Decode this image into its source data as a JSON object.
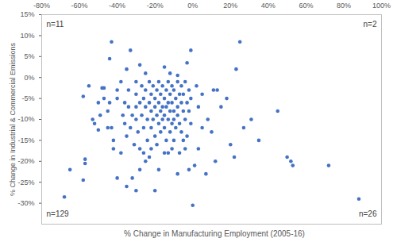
{
  "chart_data": {
    "type": "scatter",
    "x_label": "% Change in Manufacturing Employment (2005-16)",
    "y_label": "% Change in Industrial & Commercial Emissions",
    "color": "#4472c4",
    "marker": "circle",
    "grid": false,
    "annotations": [
      "n=11",
      "n=2",
      "n=129",
      "n=26"
    ],
    "xlim": [
      -80,
      100
    ],
    "xticks": [
      {
        "value": -80,
        "label": "-80%"
      },
      {
        "value": -60,
        "label": "-60%"
      },
      {
        "value": -40,
        "label": "-40%"
      },
      {
        "value": -20,
        "label": "-20%"
      },
      {
        "value": 0,
        "label": "0%"
      },
      {
        "value": 20,
        "label": "20%"
      },
      {
        "value": 40,
        "label": "40%"
      },
      {
        "value": 60,
        "label": "60%"
      },
      {
        "value": 80,
        "label": "80%"
      },
      {
        "value": 100,
        "label": "100%"
      }
    ],
    "ylim": [
      -35,
      15
    ],
    "yticks": [
      {
        "value": -30,
        "label": "-30%"
      },
      {
        "value": -25,
        "label": "-25%"
      },
      {
        "value": -20,
        "label": "-20%"
      },
      {
        "value": -15,
        "label": "-15%"
      },
      {
        "value": -10,
        "label": "-10%"
      },
      {
        "value": -5,
        "label": "-5%"
      },
      {
        "value": 0,
        "label": "0%"
      },
      {
        "value": 5,
        "label": "5%"
      },
      {
        "value": 10,
        "label": "10%"
      },
      {
        "value": 15,
        "label": "15%"
      }
    ],
    "x": [
      23,
      25,
      -43,
      -44,
      -33,
      -35,
      -28,
      -25,
      -15,
      -12,
      -3,
      -1,
      -8,
      2,
      5,
      3,
      8,
      11,
      13,
      15,
      10,
      5,
      3,
      12,
      20,
      22,
      27,
      31,
      35,
      45,
      50,
      52,
      53,
      72,
      88,
      0,
      1,
      18,
      7,
      -68,
      -65,
      -58,
      -57,
      -57,
      -58,
      -55,
      -52,
      -50,
      -48,
      -47,
      -45,
      -43,
      -42,
      -42,
      -40,
      -38,
      -35,
      -32,
      -30,
      -28,
      -25,
      -22,
      -20,
      -15,
      -13,
      -10,
      -5,
      -3,
      -2,
      -8,
      -18,
      -45,
      -44,
      -40,
      -40,
      -38,
      -37,
      -36,
      -35,
      -33,
      -32,
      -30,
      -30,
      -30,
      -30,
      -29,
      -28,
      -27,
      -27,
      -26,
      -26,
      -25,
      -25,
      -24,
      -24,
      -23,
      -23,
      -22,
      -22,
      -22,
      -21,
      -21,
      -20,
      -20,
      -20,
      -19,
      -19,
      -18,
      -18,
      -18,
      -17,
      -17,
      -17,
      -16,
      -16,
      -16,
      -15,
      -15,
      -15,
      -14,
      -14,
      -14,
      -13,
      -13,
      -13,
      -12,
      -12,
      -12,
      -11,
      -11,
      -11,
      -10,
      -10,
      -10,
      -9,
      -9,
      -8,
      -8,
      -8,
      -7,
      -7,
      -6,
      -6,
      -6,
      -5,
      -5,
      -4,
      -4,
      -3,
      -2,
      -2,
      -1,
      -1,
      -34,
      -34,
      -31,
      -28,
      -26,
      -23,
      -19,
      -11,
      -7,
      -4,
      -36,
      -47,
      -50,
      -53,
      -49
    ],
    "y": [
      2,
      8.5,
      8.5,
      4.5,
      6.5,
      2,
      3,
      1,
      2.5,
      1,
      3.5,
      6.5,
      0.5,
      -2,
      -4,
      -7,
      -10,
      -3,
      -3,
      -7,
      -13,
      -12,
      -17,
      -20,
      -16,
      -19,
      -12,
      -10,
      -15,
      -8,
      -19,
      -20,
      -21,
      -21,
      -29,
      -30.5,
      -21,
      -5,
      -23,
      -28.5,
      -22,
      -24.5,
      -19.5,
      -20.5,
      -4.5,
      -2,
      -11,
      -12.5,
      -2.5,
      -2.5,
      -12,
      -12,
      -15,
      -17,
      -24,
      -18,
      -26,
      -24,
      -27,
      -22,
      -20,
      -17,
      -27,
      -18,
      -18,
      -15,
      -15,
      -14,
      -22,
      -23,
      -22,
      -8,
      -6,
      -3,
      -5,
      -1,
      -9,
      -11,
      -14,
      -12,
      -9,
      -1,
      -4,
      -7,
      -10,
      -13,
      -6,
      -2,
      -9,
      -12,
      -5,
      -3,
      -7,
      -10,
      -15,
      -1,
      -6,
      -4,
      -8,
      -12,
      -2,
      -10,
      -5,
      -7,
      -14,
      -3,
      -9,
      -1,
      -6,
      -11,
      -4,
      -8,
      -13,
      -2,
      -7,
      -10,
      -5,
      -9,
      -12,
      -3,
      -7,
      -15,
      -1,
      -6,
      -10,
      -4,
      -8,
      -13,
      -2,
      -6,
      -11,
      -3,
      -8,
      -10,
      -5,
      -12,
      -1,
      -7,
      -9,
      -4,
      -11,
      -2,
      -6,
      -13,
      -8,
      -4,
      -1,
      -10,
      -6,
      -3,
      -8,
      -5,
      -11,
      -3,
      -7,
      -16,
      -17,
      -18,
      -19,
      -16,
      -17,
      -18,
      -17,
      -6,
      -5,
      -6,
      -10,
      -9
    ]
  }
}
